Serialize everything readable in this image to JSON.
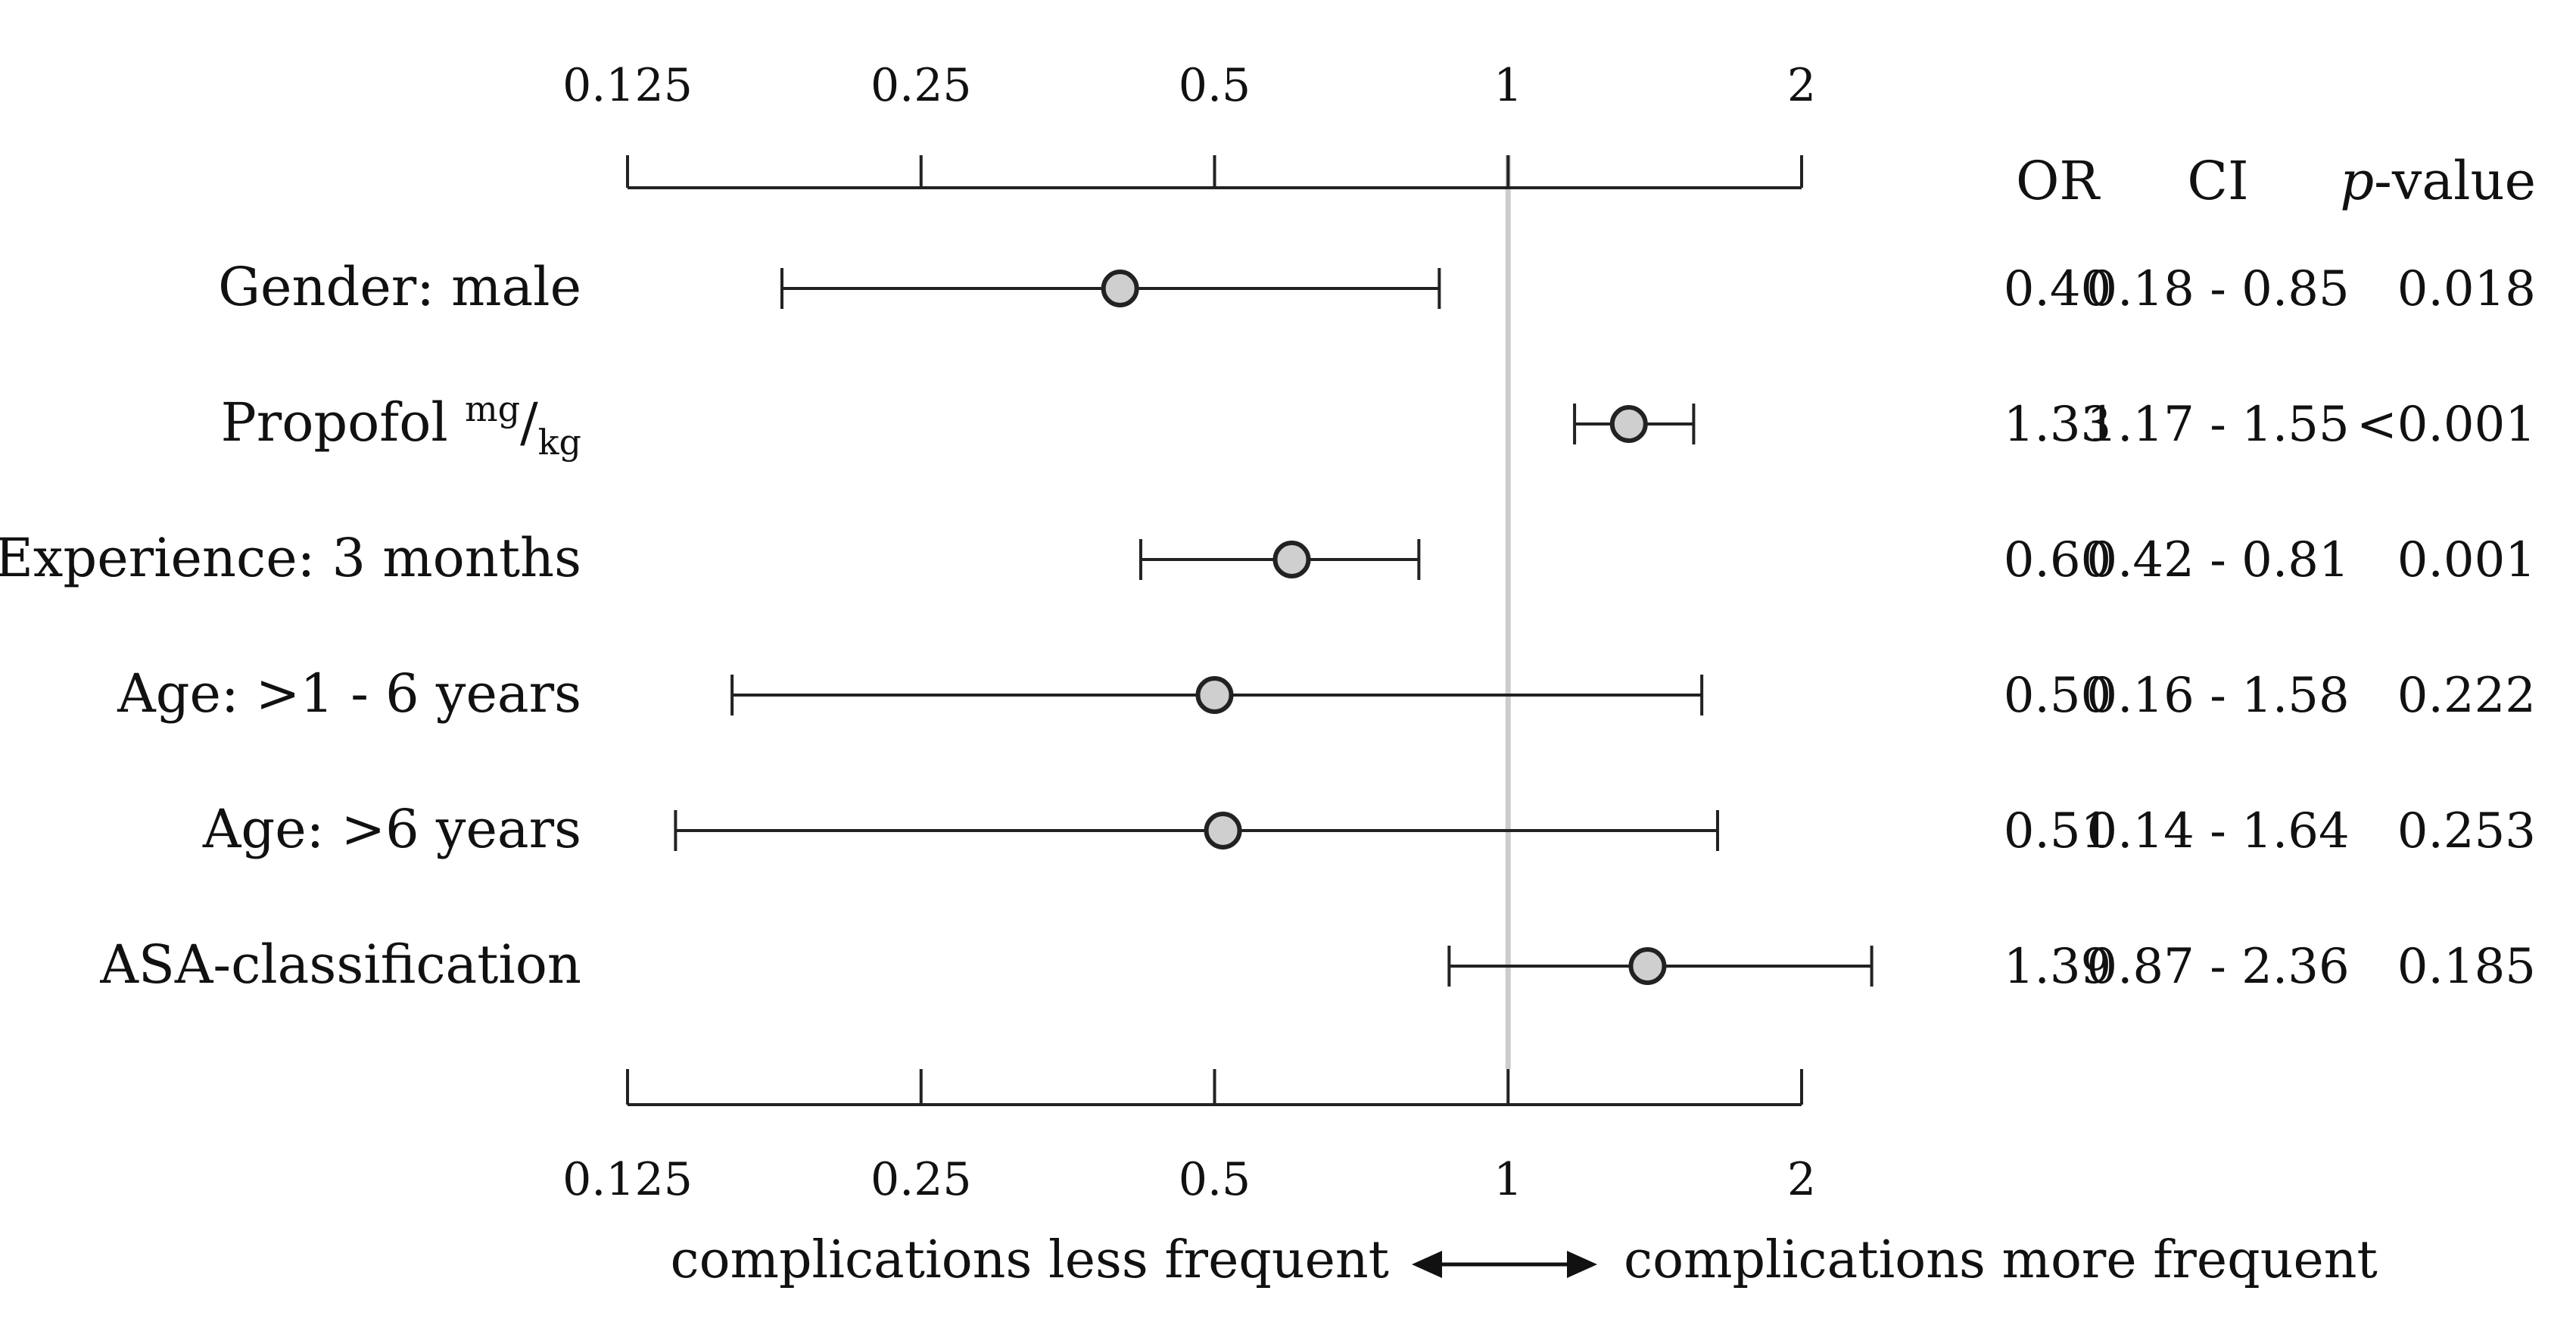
{
  "chart_data": {
    "type": "forest",
    "x_scale": "log2",
    "xlim": [
      0.125,
      2
    ],
    "x_ticks": [
      "0.125",
      "0.25",
      "0.5",
      "1",
      "2"
    ],
    "x_tick_values": [
      0.125,
      0.25,
      0.5,
      1,
      2
    ],
    "reference_value": 1,
    "column_headers": {
      "or": "OR",
      "ci": "CI",
      "p_italic": "p",
      "p_rest": "-value"
    },
    "rows": [
      {
        "label": "Gender: male",
        "label_sup": "",
        "label_sub": "",
        "or": 0.4,
        "ci_low": 0.18,
        "ci_high": 0.85,
        "or_text": "0.40",
        "ci_text": "0.18 - 0.85",
        "p_text": "0.018"
      },
      {
        "label": "Propofol ",
        "label_sup": "mg",
        "label_sub": "kg",
        "or": 1.33,
        "ci_low": 1.17,
        "ci_high": 1.55,
        "or_text": "1.33",
        "ci_text": "1.17 - 1.55",
        "p_text": "<0.001"
      },
      {
        "label": "Experience: 3 months",
        "label_sup": "",
        "label_sub": "",
        "or": 0.6,
        "ci_low": 0.42,
        "ci_high": 0.81,
        "or_text": "0.60",
        "ci_text": "0.42 - 0.81",
        "p_text": "0.001"
      },
      {
        "label": "Age: >1 - 6 years",
        "label_sup": "",
        "label_sub": "",
        "or": 0.5,
        "ci_low": 0.16,
        "ci_high": 1.58,
        "or_text": "0.50",
        "ci_text": "0.16 - 1.58",
        "p_text": "0.222"
      },
      {
        "label": "Age: >6 years",
        "label_sup": "",
        "label_sub": "",
        "or": 0.51,
        "ci_low": 0.14,
        "ci_high": 1.64,
        "or_text": "0.51",
        "ci_text": "0.14 - 1.64",
        "p_text": "0.253"
      },
      {
        "label": "ASA-classification",
        "label_sup": "",
        "label_sub": "",
        "or": 1.39,
        "ci_low": 0.87,
        "ci_high": 2.36,
        "or_text": "1.39",
        "ci_text": "0.87 - 2.36",
        "p_text": "0.185"
      }
    ],
    "caption": {
      "left": "complications less frequent",
      "right": "complications more frequent"
    },
    "colors": {
      "point_fill": "#cfcfcf",
      "reference_line": "#cccccc",
      "ink": "#222222"
    }
  }
}
